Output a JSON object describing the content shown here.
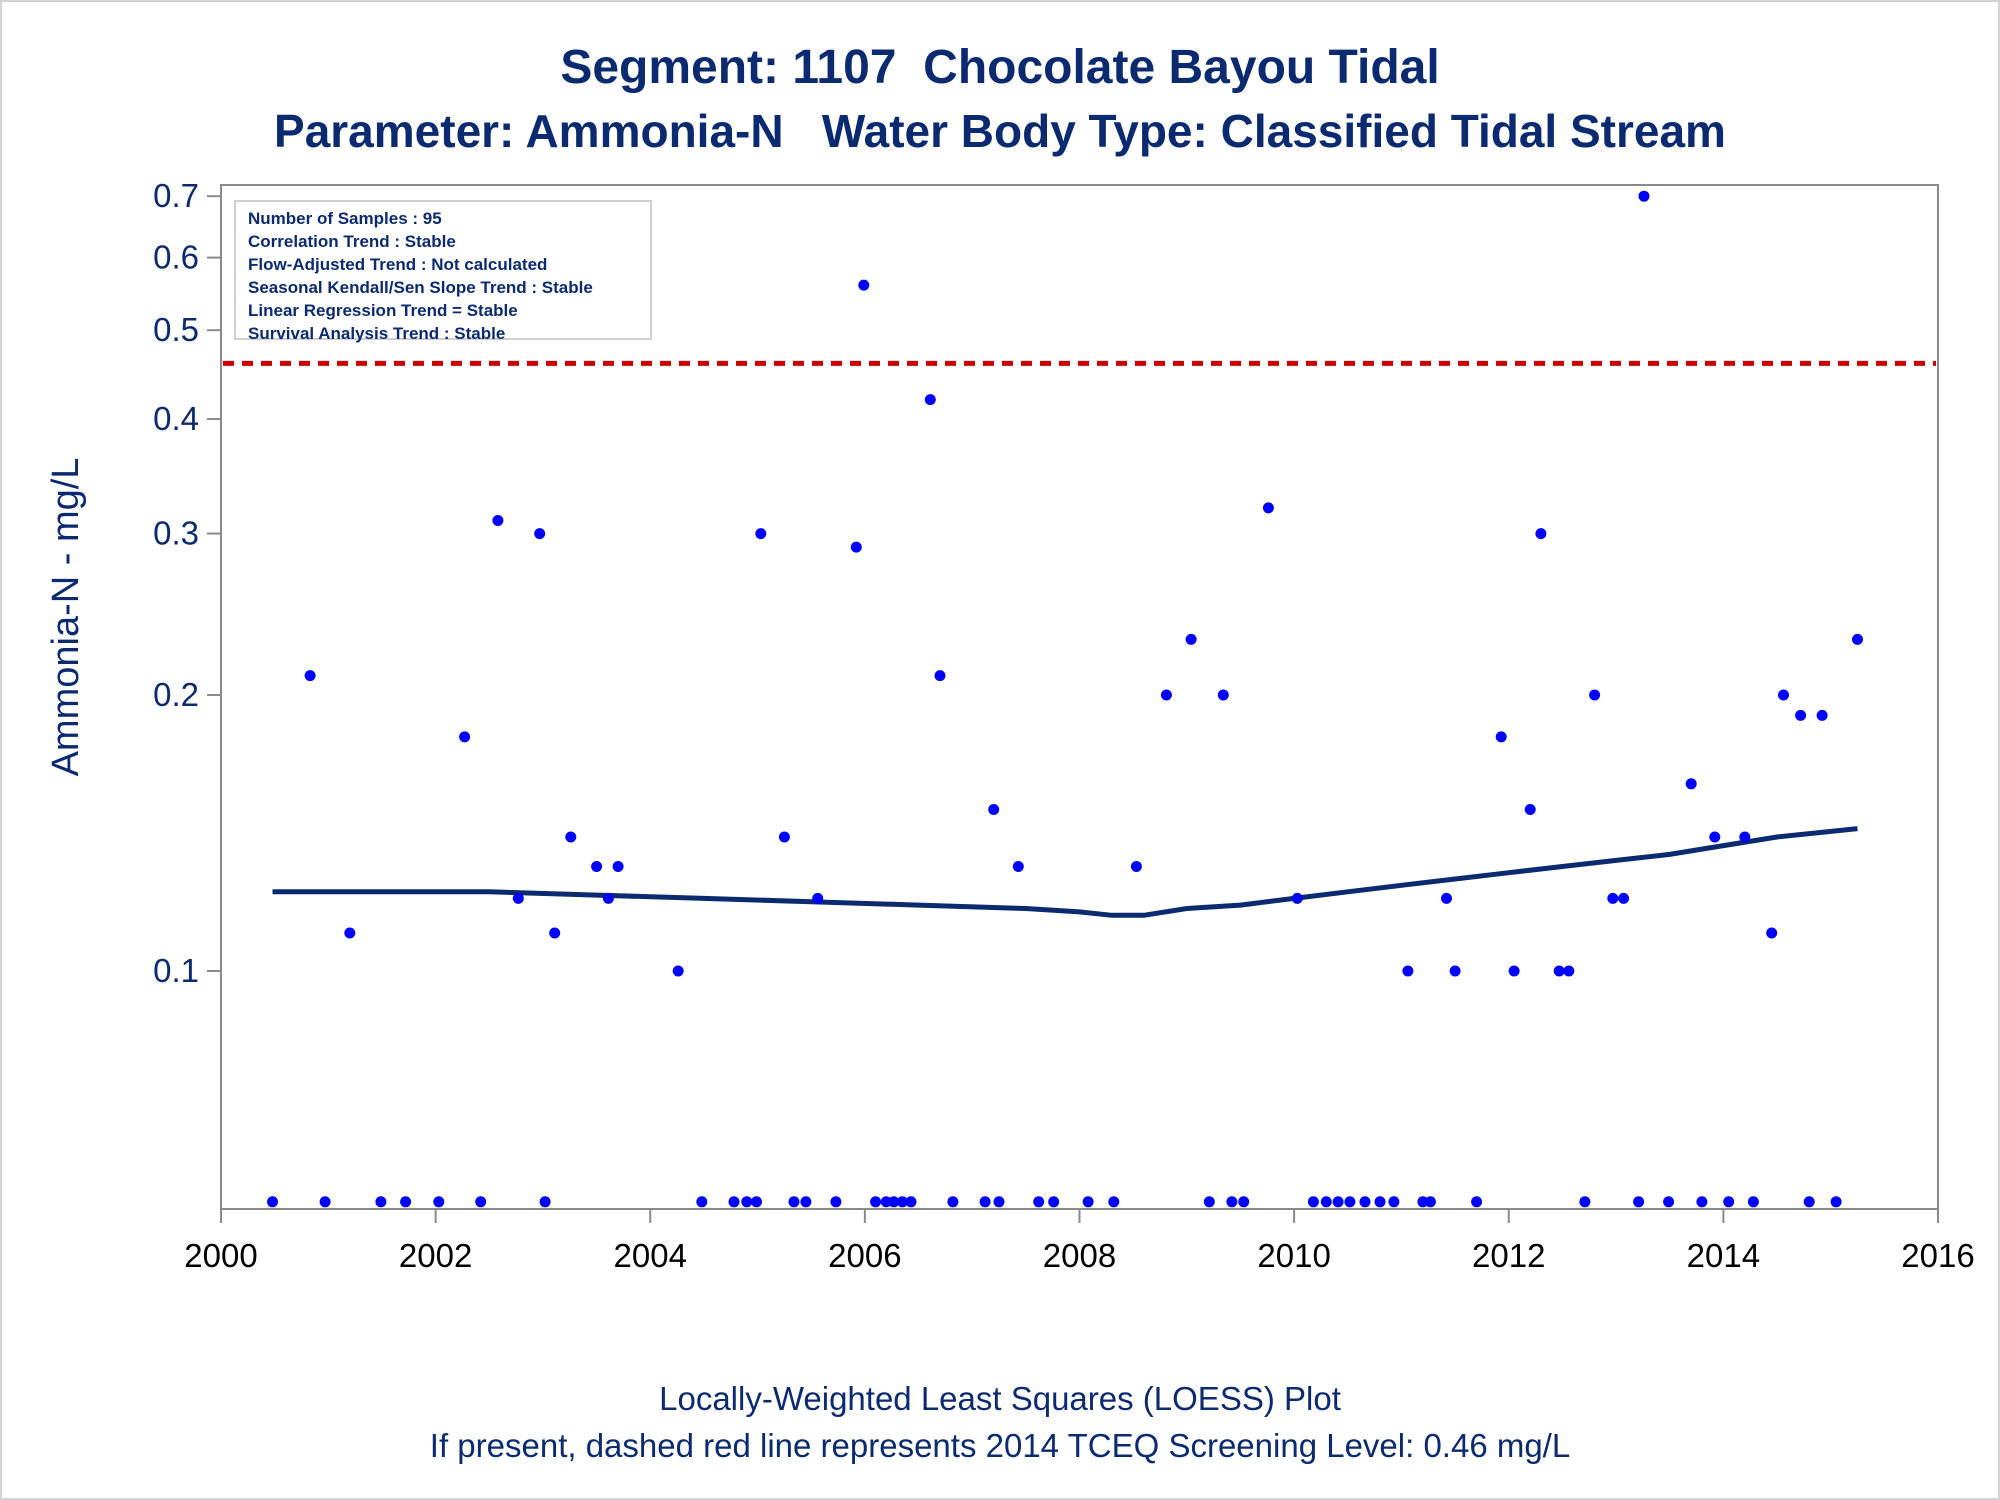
{
  "title_line1": "Segment: 1107  Chocolate Bayou Tidal",
  "title_line2": "Parameter: Ammonia-N   Water Body Type: Classified Tidal Stream",
  "footnote_line1": "Locally-Weighted Least Squares (LOESS) Plot",
  "footnote_line2": "If present, dashed red line represents 2014 TCEQ Screening Level: 0.46 mg/L",
  "stats": [
    "Number of Samples : 95",
    "Correlation Trend : Stable",
    "Flow-Adjusted Trend : Not calculated",
    "Seasonal Kendall/Sen Slope Trend : Stable",
    "Linear Regression Trend = Stable",
    "Survival Analysis Trend : Stable"
  ],
  "colors": {
    "text": "#0b2a6f",
    "points": "#0000ff",
    "loess": "#0b2a6f",
    "screening": "#cc0000",
    "frame": "#8a8a8a"
  },
  "chart_data": {
    "type": "scatter",
    "xlabel": "",
    "ylabel": "Ammonia-N - mg/L",
    "y_scale": "log",
    "xlim": [
      2000,
      2016
    ],
    "ylim": [
      0.055,
      0.72
    ],
    "x_ticks": [
      2000,
      2002,
      2004,
      2006,
      2008,
      2010,
      2012,
      2014,
      2016
    ],
    "y_ticks": [
      0.1,
      0.2,
      0.3,
      0.4,
      0.5,
      0.6,
      0.7
    ],
    "y_tick_labels": [
      "0.1",
      "0.2",
      "0.3",
      "0.4",
      "0.5",
      "0.6",
      "0.7"
    ],
    "grid": false,
    "screening_level": 0.46,
    "points": [
      [
        2000.48,
        0.056
      ],
      [
        2000.83,
        0.21
      ],
      [
        2000.97,
        0.056
      ],
      [
        2001.2,
        0.11
      ],
      [
        2001.49,
        0.056
      ],
      [
        2001.72,
        0.056
      ],
      [
        2002.03,
        0.056
      ],
      [
        2002.27,
        0.18
      ],
      [
        2002.42,
        0.056
      ],
      [
        2002.58,
        0.31
      ],
      [
        2002.77,
        0.12
      ],
      [
        2002.97,
        0.3
      ],
      [
        2003.02,
        0.056
      ],
      [
        2003.11,
        0.11
      ],
      [
        2003.26,
        0.14
      ],
      [
        2003.5,
        0.13
      ],
      [
        2003.61,
        0.12
      ],
      [
        2003.7,
        0.13
      ],
      [
        2004.26,
        0.1
      ],
      [
        2004.48,
        0.056
      ],
      [
        2004.78,
        0.056
      ],
      [
        2004.9,
        0.056
      ],
      [
        2004.99,
        0.056
      ],
      [
        2005.03,
        0.3
      ],
      [
        2005.25,
        0.14
      ],
      [
        2005.34,
        0.056
      ],
      [
        2005.45,
        0.056
      ],
      [
        2005.56,
        0.12
      ],
      [
        2005.73,
        0.056
      ],
      [
        2005.92,
        0.29
      ],
      [
        2005.99,
        0.56
      ],
      [
        2006.1,
        0.056
      ],
      [
        2006.2,
        0.056
      ],
      [
        2006.27,
        0.056
      ],
      [
        2006.35,
        0.056
      ],
      [
        2006.43,
        0.056
      ],
      [
        2006.61,
        0.42
      ],
      [
        2006.7,
        0.21
      ],
      [
        2006.82,
        0.056
      ],
      [
        2007.12,
        0.056
      ],
      [
        2007.2,
        0.15
      ],
      [
        2007.25,
        0.056
      ],
      [
        2007.43,
        0.13
      ],
      [
        2007.62,
        0.056
      ],
      [
        2007.76,
        0.056
      ],
      [
        2008.08,
        0.056
      ],
      [
        2008.32,
        0.056
      ],
      [
        2008.53,
        0.13
      ],
      [
        2008.81,
        0.2
      ],
      [
        2009.04,
        0.23
      ],
      [
        2009.21,
        0.056
      ],
      [
        2009.34,
        0.2
      ],
      [
        2009.42,
        0.056
      ],
      [
        2009.53,
        0.056
      ],
      [
        2009.76,
        0.32
      ],
      [
        2010.03,
        0.12
      ],
      [
        2010.18,
        0.056
      ],
      [
        2010.3,
        0.056
      ],
      [
        2010.41,
        0.056
      ],
      [
        2010.52,
        0.056
      ],
      [
        2010.66,
        0.056
      ],
      [
        2010.8,
        0.056
      ],
      [
        2010.93,
        0.056
      ],
      [
        2011.06,
        0.1
      ],
      [
        2011.2,
        0.056
      ],
      [
        2011.27,
        0.056
      ],
      [
        2011.42,
        0.12
      ],
      [
        2011.5,
        0.1
      ],
      [
        2011.7,
        0.056
      ],
      [
        2011.93,
        0.18
      ],
      [
        2012.05,
        0.1
      ],
      [
        2012.2,
        0.15
      ],
      [
        2012.3,
        0.3
      ],
      [
        2012.47,
        0.1
      ],
      [
        2012.56,
        0.1
      ],
      [
        2012.71,
        0.056
      ],
      [
        2012.8,
        0.2
      ],
      [
        2012.97,
        0.12
      ],
      [
        2013.07,
        0.12
      ],
      [
        2013.21,
        0.056
      ],
      [
        2013.26,
        0.7
      ],
      [
        2013.49,
        0.056
      ],
      [
        2013.7,
        0.16
      ],
      [
        2013.8,
        0.056
      ],
      [
        2013.92,
        0.14
      ],
      [
        2014.05,
        0.056
      ],
      [
        2014.2,
        0.14
      ],
      [
        2014.28,
        0.056
      ],
      [
        2014.45,
        0.11
      ],
      [
        2014.56,
        0.2
      ],
      [
        2014.72,
        0.19
      ],
      [
        2014.8,
        0.056
      ],
      [
        2014.92,
        0.19
      ],
      [
        2015.05,
        0.056
      ],
      [
        2015.25,
        0.23
      ]
    ],
    "loess": [
      [
        2000.48,
        0.122
      ],
      [
        2001.5,
        0.122
      ],
      [
        2002.5,
        0.122
      ],
      [
        2003.5,
        0.121
      ],
      [
        2004.5,
        0.12
      ],
      [
        2005.5,
        0.119
      ],
      [
        2006.5,
        0.118
      ],
      [
        2007.5,
        0.117
      ],
      [
        2008.0,
        0.116
      ],
      [
        2008.3,
        0.115
      ],
      [
        2008.6,
        0.115
      ],
      [
        2009.0,
        0.117
      ],
      [
        2009.5,
        0.118
      ],
      [
        2010.0,
        0.12
      ],
      [
        2010.5,
        0.122
      ],
      [
        2011.0,
        0.124
      ],
      [
        2011.5,
        0.126
      ],
      [
        2012.0,
        0.128
      ],
      [
        2012.5,
        0.13
      ],
      [
        2013.0,
        0.132
      ],
      [
        2013.5,
        0.134
      ],
      [
        2014.0,
        0.137
      ],
      [
        2014.5,
        0.14
      ],
      [
        2015.25,
        0.143
      ]
    ]
  }
}
